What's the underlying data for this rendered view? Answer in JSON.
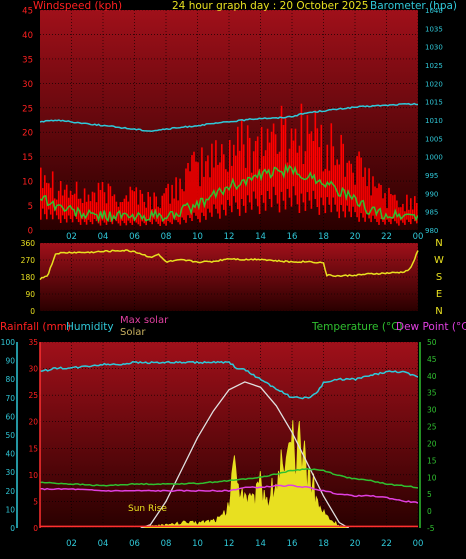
{
  "colors": {
    "background": "#000000",
    "plot_top": "#a0101a",
    "plot_bottom": "#2a0000",
    "wind": "#ff2020",
    "gust": "#ff0000",
    "avg_wind": "#30c030",
    "barometer": "#30c8d8",
    "direction": "#e8e020",
    "solar": "#e8e020",
    "max_solar": "#e0e0e0",
    "temperature": "#30c030",
    "dew_point": "#e040e0",
    "humidity": "#30c8d8",
    "rain_line": "#ff3030"
  },
  "labels": {
    "windspeed": "Windspeed (kph)",
    "title": "24 hour graph day : 20 October 2025",
    "barometer": "Barometer (hpa)",
    "rainfall": "Rainfall (mm)",
    "humidity": "Humidity",
    "max_solar": "Max solar",
    "solar": "Solar",
    "temperature": "Temperature (°C)",
    "dew_point": "Dew Point (°C)",
    "sun_rise": "Sun Rise"
  },
  "chart_data": [
    {
      "type": "line",
      "name": "wind-barometer",
      "x_ticks": [
        "02",
        "04",
        "06",
        "08",
        "10",
        "12",
        "14",
        "16",
        "18",
        "20",
        "22",
        "00"
      ],
      "wind_axis": {
        "ticks": [
          "0",
          "5",
          "10",
          "15",
          "20",
          "25",
          "30",
          "35",
          "40",
          "45"
        ],
        "range": [
          0,
          45
        ]
      },
      "baro_axis": {
        "ticks": [
          "980",
          "985",
          "990",
          "995",
          "1000",
          "1005",
          "1010",
          "1015",
          "1020",
          "1025",
          "1030",
          "1035",
          "1040"
        ],
        "range": [
          980,
          1040
        ]
      },
      "barometer_hours": [
        0,
        1,
        2,
        3,
        4,
        5,
        6,
        7,
        8,
        9,
        10,
        11,
        12,
        13,
        14,
        15,
        16,
        17,
        18,
        19,
        20,
        21,
        22,
        23,
        24
      ],
      "barometer_values": [
        1009.5,
        1010,
        1009.5,
        1009,
        1008.5,
        1008,
        1007.5,
        1007,
        1007.5,
        1008,
        1008.5,
        1009,
        1009.5,
        1010,
        1010.5,
        1010.5,
        1011,
        1012,
        1012.5,
        1013,
        1013.5,
        1013.8,
        1014,
        1014.3,
        1014.3
      ],
      "avg_wind_hours": [
        0,
        1,
        2,
        3,
        4,
        5,
        6,
        7,
        8,
        9,
        10,
        11,
        12,
        13,
        14,
        15,
        16,
        17,
        18,
        19,
        20,
        21,
        22,
        23,
        24
      ],
      "avg_wind_values": [
        7,
        5,
        4,
        3,
        3,
        3,
        2.5,
        3,
        2.5,
        4,
        5,
        7,
        9,
        10,
        11,
        12,
        12,
        11,
        10,
        8,
        6,
        4,
        3,
        3,
        3
      ],
      "gust_hours": [
        0,
        1,
        2,
        3,
        4,
        5,
        6,
        7,
        8,
        9,
        10,
        11,
        12,
        13,
        14,
        15,
        16,
        17,
        18,
        19,
        20,
        21,
        22,
        23,
        24
      ],
      "gust_values": [
        16,
        11,
        9,
        8,
        9,
        8,
        9,
        7,
        8,
        12,
        15,
        17,
        19,
        21,
        21,
        23,
        23,
        24,
        20,
        18,
        15,
        11,
        8,
        6,
        8
      ]
    },
    {
      "type": "line",
      "name": "wind-direction",
      "y_ticks": [
        "0",
        "90",
        "180",
        "270",
        "360"
      ],
      "y_range": [
        0,
        360
      ],
      "compass": [
        "N",
        "W",
        "S",
        "E",
        "N"
      ],
      "hours": [
        0,
        0.5,
        1,
        2,
        3,
        4,
        5,
        5.5,
        6,
        7,
        7.5,
        8,
        9,
        10,
        11,
        12,
        13,
        14,
        15,
        16,
        17,
        18,
        18.2,
        19,
        20,
        21,
        22,
        23,
        23.5,
        24
      ],
      "values": [
        170,
        190,
        305,
        310,
        310,
        315,
        320,
        320,
        315,
        285,
        300,
        260,
        270,
        260,
        262,
        278,
        272,
        275,
        265,
        260,
        262,
        255,
        190,
        185,
        190,
        196,
        200,
        205,
        220,
        320
      ]
    },
    {
      "type": "line",
      "name": "temperature-solar",
      "x_ticks": [
        "02",
        "04",
        "06",
        "08",
        "10",
        "12",
        "14",
        "16",
        "18",
        "20",
        "22",
        "00"
      ],
      "rain_axis": {
        "ticks": [
          "0",
          "5",
          "10",
          "15",
          "20",
          "25",
          "30",
          "35"
        ],
        "range": [
          0,
          35
        ]
      },
      "humidity_axis": {
        "ticks": [
          "0",
          "10",
          "20",
          "30",
          "40",
          "50",
          "60",
          "70",
          "80",
          "90",
          "100"
        ],
        "range": [
          0,
          100
        ]
      },
      "temp_axis": {
        "ticks": [
          "-5",
          "0",
          "5",
          "10",
          "15",
          "20",
          "25",
          "30",
          "35",
          "40",
          "45",
          "50"
        ],
        "range": [
          -5,
          50
        ]
      },
      "humidity_hours": [
        0,
        1,
        2,
        3,
        4,
        5,
        6,
        7,
        8,
        9,
        10,
        11,
        12,
        12.5,
        13,
        14,
        15,
        16,
        17,
        17.5,
        18,
        19,
        20,
        21,
        22,
        23,
        24
      ],
      "humidity_values": [
        84,
        86,
        86,
        87,
        88,
        88,
        89,
        89,
        89,
        89,
        89,
        89,
        89,
        86,
        85,
        80,
        75,
        70,
        70,
        72,
        78,
        80,
        80,
        82,
        84,
        84,
        81
      ],
      "temperature_hours": [
        0,
        2,
        4,
        6,
        8,
        10,
        12,
        13,
        14,
        15,
        16,
        17,
        18,
        19,
        20,
        21,
        22,
        23,
        24
      ],
      "temperature_values": [
        8.5,
        8,
        7.5,
        8,
        8,
        8.2,
        9,
        9.5,
        10,
        11,
        12,
        12.5,
        12,
        10.5,
        9.5,
        9,
        8,
        7.5,
        7
      ],
      "dew_hours": [
        0,
        2,
        4,
        6,
        8,
        10,
        12,
        13,
        14,
        15,
        16,
        17,
        18,
        19,
        20,
        21,
        22,
        23,
        24
      ],
      "dew_values": [
        6.5,
        6.5,
        6,
        6,
        6,
        6,
        6,
        7,
        7,
        7.5,
        7.5,
        7,
        6,
        5,
        4.5,
        4.5,
        4,
        3,
        2.5
      ],
      "max_solar_hours": [
        6.4,
        7,
        8,
        9,
        10,
        11,
        12,
        13,
        14,
        15,
        16,
        17,
        18,
        19,
        19.6
      ],
      "max_solar_values": [
        0,
        0.6,
        5,
        11,
        17,
        22,
        26,
        27.5,
        26.5,
        23,
        18,
        12,
        6,
        1,
        0
      ],
      "solar_hours": [
        6.4,
        7,
        8,
        9,
        10,
        11,
        11.5,
        12,
        12.2,
        12.5,
        13,
        13.5,
        14,
        14.5,
        15,
        15.3,
        15.6,
        16,
        16.3,
        16.6,
        17,
        17.3,
        17.6,
        18,
        18.5,
        19,
        19.6
      ],
      "solar_values": [
        0,
        0.5,
        0.5,
        1,
        1,
        1.5,
        2,
        4,
        13,
        10,
        7,
        5,
        8,
        6,
        9,
        12,
        10,
        16,
        13,
        17,
        11,
        9,
        5,
        3,
        1.5,
        0.5,
        0
      ],
      "rain_hours": [
        0,
        24
      ],
      "rain_values": [
        0.3,
        0.3
      ]
    }
  ]
}
